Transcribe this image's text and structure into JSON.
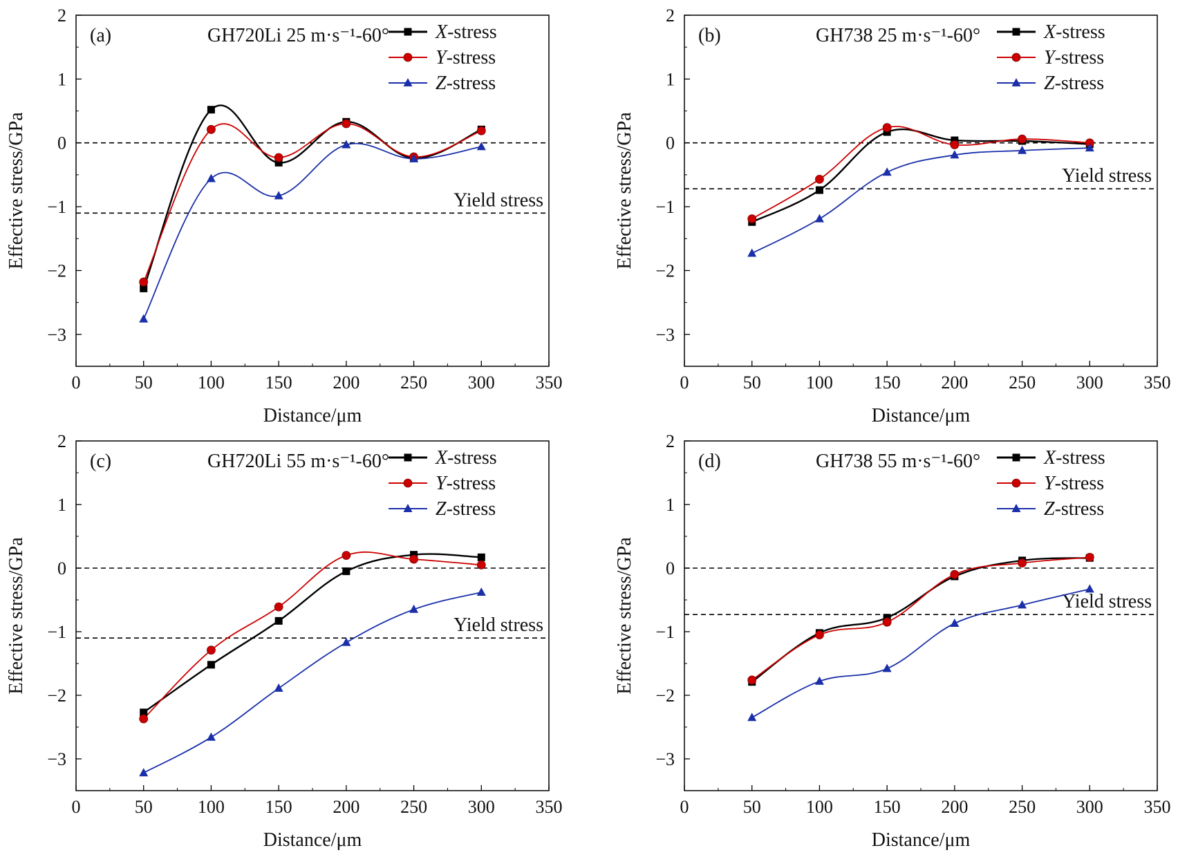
{
  "colors": {
    "x_stress": "#000000",
    "y_stress": "#cc0000",
    "z_stress": "#1a2fa8",
    "axis": "#000000",
    "ref_line": "#000000"
  },
  "chart_data": [
    {
      "id": "a",
      "type": "line",
      "panel_label": "(a)",
      "condition": "GH720Li 25 m·s⁻¹-60°",
      "xlabel": "Distance/μm",
      "ylabel": "Effective stress/GPa",
      "xlim": [
        0,
        350
      ],
      "ylim": [
        -3.5,
        2
      ],
      "xticks": [
        "0",
        "50",
        "100",
        "150",
        "200",
        "250",
        "300",
        "350"
      ],
      "yticks": [
        "−3",
        "−2",
        "−1",
        "0",
        "1",
        "2"
      ],
      "x": [
        50,
        100,
        150,
        200,
        250,
        300
      ],
      "series": [
        {
          "name": "X-stress",
          "marker": "square",
          "values": [
            -2.28,
            0.52,
            -0.31,
            0.33,
            -0.24,
            0.21
          ]
        },
        {
          "name": "Y-stress",
          "marker": "circle",
          "values": [
            -2.18,
            0.21,
            -0.23,
            0.3,
            -0.22,
            0.19
          ]
        },
        {
          "name": "Z-stress",
          "marker": "triangle",
          "values": [
            -2.76,
            -0.56,
            -0.83,
            -0.03,
            -0.25,
            -0.06
          ]
        }
      ],
      "reference_lines": [
        {
          "y": 0,
          "label": ""
        },
        {
          "y": -1.1,
          "label": "Yield stress"
        }
      ],
      "legend": [
        {
          "italic": "X",
          "text": "-stress"
        },
        {
          "italic": "Y",
          "text": "-stress"
        },
        {
          "italic": "Z",
          "text": "-stress"
        }
      ],
      "legend_position": "top-right",
      "grid": false
    },
    {
      "id": "b",
      "type": "line",
      "panel_label": "(b)",
      "condition": "GH738 25 m·s⁻¹-60°",
      "xlabel": "Distance/μm",
      "ylabel": "Effective stress/GPa",
      "xlim": [
        0,
        350
      ],
      "ylim": [
        -3.5,
        2
      ],
      "xticks": [
        "0",
        "50",
        "100",
        "150",
        "200",
        "250",
        "300",
        "350"
      ],
      "yticks": [
        "−3",
        "−2",
        "−1",
        "0",
        "1",
        "2"
      ],
      "x": [
        50,
        100,
        150,
        200,
        250,
        300
      ],
      "series": [
        {
          "name": "X-stress",
          "marker": "square",
          "values": [
            -1.24,
            -0.74,
            0.17,
            0.04,
            0.03,
            -0.02
          ]
        },
        {
          "name": "Y-stress",
          "marker": "circle",
          "values": [
            -1.19,
            -0.57,
            0.24,
            -0.03,
            0.06,
            0.0
          ]
        },
        {
          "name": "Z-stress",
          "marker": "triangle",
          "values": [
            -1.73,
            -1.19,
            -0.46,
            -0.19,
            -0.12,
            -0.08
          ]
        }
      ],
      "reference_lines": [
        {
          "y": 0,
          "label": ""
        },
        {
          "y": -0.72,
          "label": "Yield stress"
        }
      ],
      "legend": [
        {
          "italic": "X",
          "text": "-stress"
        },
        {
          "italic": "Y",
          "text": "-stress"
        },
        {
          "italic": "Z",
          "text": "-stress"
        }
      ],
      "legend_position": "top-right",
      "grid": false
    },
    {
      "id": "c",
      "type": "line",
      "panel_label": "(c)",
      "condition": "GH720Li 55 m·s⁻¹-60°",
      "xlabel": "Distance/μm",
      "ylabel": "Effective stress/GPa",
      "xlim": [
        0,
        350
      ],
      "ylim": [
        -3.5,
        2
      ],
      "xticks": [
        "0",
        "50",
        "100",
        "150",
        "200",
        "250",
        "300",
        "350"
      ],
      "yticks": [
        "−3",
        "−2",
        "−1",
        "0",
        "1",
        "2"
      ],
      "x": [
        50,
        100,
        150,
        200,
        250,
        300
      ],
      "series": [
        {
          "name": "X-stress",
          "marker": "square",
          "values": [
            -2.27,
            -1.52,
            -0.83,
            -0.05,
            0.21,
            0.17
          ]
        },
        {
          "name": "Y-stress",
          "marker": "circle",
          "values": [
            -2.37,
            -1.29,
            -0.61,
            0.2,
            0.14,
            0.05
          ]
        },
        {
          "name": "Z-stress",
          "marker": "triangle",
          "values": [
            -3.22,
            -2.66,
            -1.89,
            -1.17,
            -0.65,
            -0.38
          ]
        }
      ],
      "reference_lines": [
        {
          "y": 0,
          "label": ""
        },
        {
          "y": -1.1,
          "label": "Yield stress"
        }
      ],
      "legend": [
        {
          "italic": "X",
          "text": "-stress"
        },
        {
          "italic": "Y",
          "text": "-stress"
        },
        {
          "italic": "Z",
          "text": "-stress"
        }
      ],
      "legend_position": "top-right",
      "grid": false
    },
    {
      "id": "d",
      "type": "line",
      "panel_label": "(d)",
      "condition": "GH738 55 m·s⁻¹-60°",
      "xlabel": "Distance/μm",
      "ylabel": "Effective stress/GPa",
      "xlim": [
        0,
        350
      ],
      "ylim": [
        -3.5,
        2
      ],
      "xticks": [
        "0",
        "50",
        "100",
        "150",
        "200",
        "250",
        "300",
        "350"
      ],
      "yticks": [
        "−3",
        "−2",
        "−1",
        "0",
        "1",
        "2"
      ],
      "x": [
        50,
        100,
        150,
        200,
        250,
        300
      ],
      "series": [
        {
          "name": "X-stress",
          "marker": "square",
          "values": [
            -1.79,
            -1.02,
            -0.78,
            -0.13,
            0.12,
            0.16
          ]
        },
        {
          "name": "Y-stress",
          "marker": "circle",
          "values": [
            -1.76,
            -1.05,
            -0.85,
            -0.1,
            0.08,
            0.17
          ]
        },
        {
          "name": "Z-stress",
          "marker": "triangle",
          "values": [
            -2.35,
            -1.78,
            -1.58,
            -0.87,
            -0.58,
            -0.33
          ]
        }
      ],
      "reference_lines": [
        {
          "y": 0,
          "label": ""
        },
        {
          "y": -0.73,
          "label": "Yield stress"
        }
      ],
      "legend": [
        {
          "italic": "X",
          "text": "-stress"
        },
        {
          "italic": "Y",
          "text": "-stress"
        },
        {
          "italic": "Z",
          "text": "-stress"
        }
      ],
      "legend_position": "top-right",
      "grid": false
    }
  ]
}
